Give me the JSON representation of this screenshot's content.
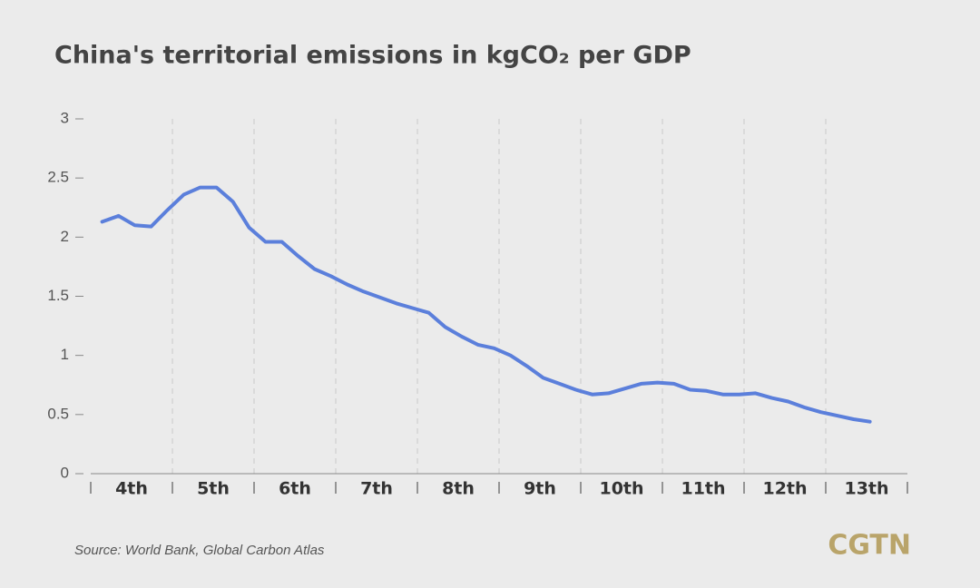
{
  "chart_data": {
    "type": "line",
    "title": "China's territorial emissions in kgCO₂ per GDP",
    "source": "Source: World Bank, Global Carbon Atlas",
    "logo": "CGTN",
    "bands": [
      "4th",
      "5th",
      "6th",
      "7th",
      "8th",
      "9th",
      "10th",
      "11th",
      "12th",
      "13th"
    ],
    "values": [
      2.13,
      2.18,
      2.1,
      2.09,
      2.23,
      2.36,
      2.42,
      2.42,
      2.3,
      2.08,
      1.96,
      1.96,
      1.84,
      1.73,
      1.67,
      1.6,
      1.54,
      1.49,
      1.44,
      1.4,
      1.36,
      1.24,
      1.16,
      1.09,
      1.06,
      1.0,
      0.91,
      0.81,
      0.76,
      0.71,
      0.67,
      0.68,
      0.72,
      0.76,
      0.77,
      0.76,
      0.71,
      0.7,
      0.67,
      0.67,
      0.68,
      0.64,
      0.61,
      0.56,
      0.52,
      0.49,
      0.46,
      0.44
    ],
    "color": "#5b7fdb",
    "ylim": [
      0,
      3
    ],
    "yticks": [
      0,
      0.5,
      1,
      1.5,
      2,
      2.5,
      3
    ]
  }
}
